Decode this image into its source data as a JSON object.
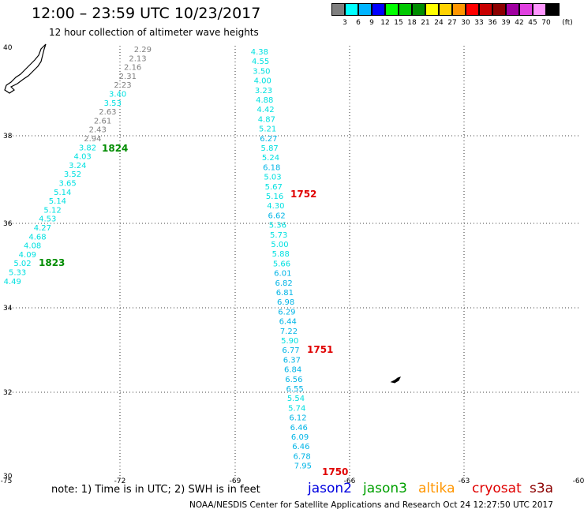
{
  "header": {
    "title": "12:00 – 23:59 UTC 10/23/2017",
    "subtitle": "12 hour collection of altimeter wave heights"
  },
  "scale": {
    "unit": "(ft)",
    "labels": [
      "3",
      "6",
      "9",
      "12",
      "15",
      "18",
      "21",
      "24",
      "27",
      "30",
      "33",
      "36",
      "39",
      "42",
      "45",
      "70"
    ],
    "colors": [
      "#7f7f7f",
      "#00ffff",
      "#00b4ff",
      "#0000ff",
      "#00ff00",
      "#00c800",
      "#008c00",
      "#ffff00",
      "#ffd200",
      "#ff9600",
      "#ff0000",
      "#c80000",
      "#8c0000",
      "#a000a0",
      "#e040e0",
      "#ff96ff",
      "#000000"
    ]
  },
  "axes": {
    "lon_labels": [
      "-75",
      "-72",
      "-69",
      "-66",
      "-63",
      "-60"
    ],
    "lat_labels": [
      "40",
      "38",
      "36",
      "34",
      "32",
      "30"
    ]
  },
  "tracks": [
    {
      "time_label": "1824",
      "label_color": "#008c00",
      "points": [
        {
          "v": "2.29",
          "c": "#7f7f7f"
        },
        {
          "v": "2.13",
          "c": "#7f7f7f"
        },
        {
          "v": "2.16",
          "c": "#7f7f7f"
        },
        {
          "v": "2.31",
          "c": "#7f7f7f"
        },
        {
          "v": "2.23",
          "c": "#7f7f7f"
        },
        {
          "v": "3.40",
          "c": "#00e0e0"
        },
        {
          "v": "3.53",
          "c": "#00e0e0"
        },
        {
          "v": "2.63",
          "c": "#7f7f7f"
        },
        {
          "v": "2.61",
          "c": "#7f7f7f"
        },
        {
          "v": "2.43",
          "c": "#7f7f7f"
        },
        {
          "v": "2.94",
          "c": "#7f7f7f"
        },
        {
          "v": "3.82",
          "c": "#00e0e0"
        },
        {
          "v": "4.03",
          "c": "#00e0e0"
        },
        {
          "v": "3.24",
          "c": "#00e0e0"
        },
        {
          "v": "3.52",
          "c": "#00e0e0"
        },
        {
          "v": "3.65",
          "c": "#00e0e0"
        },
        {
          "v": "5.14",
          "c": "#00e0e0"
        },
        {
          "v": "5.14",
          "c": "#00e0e0"
        },
        {
          "v": "5.12",
          "c": "#00e0e0"
        },
        {
          "v": "4.53",
          "c": "#00e0e0"
        },
        {
          "v": "4.27",
          "c": "#00e0e0"
        },
        {
          "v": "4.68",
          "c": "#00e0e0"
        },
        {
          "v": "4.08",
          "c": "#00e0e0"
        },
        {
          "v": "4.09",
          "c": "#00e0e0"
        },
        {
          "v": "5.02",
          "c": "#00e0e0"
        },
        {
          "v": "5.33",
          "c": "#00e0e0"
        },
        {
          "v": "4.49",
          "c": "#00e0e0"
        }
      ],
      "second_time_label": "1823"
    },
    {
      "time_label": "1752",
      "label_color": "#e00000",
      "points": [
        {
          "v": "4.38",
          "c": "#00e0e0"
        },
        {
          "v": "4.55",
          "c": "#00e0e0"
        },
        {
          "v": "3.50",
          "c": "#00e0e0"
        },
        {
          "v": "4.00",
          "c": "#00e0e0"
        },
        {
          "v": "3.23",
          "c": "#00e0e0"
        },
        {
          "v": "4.88",
          "c": "#00e0e0"
        },
        {
          "v": "4.42",
          "c": "#00e0e0"
        },
        {
          "v": "4.87",
          "c": "#00e0e0"
        },
        {
          "v": "5.21",
          "c": "#00e0e0"
        },
        {
          "v": "6.27",
          "c": "#00b4e6"
        },
        {
          "v": "5.87",
          "c": "#00e0e0"
        },
        {
          "v": "5.24",
          "c": "#00e0e0"
        },
        {
          "v": "6.18",
          "c": "#00b4e6"
        },
        {
          "v": "5.03",
          "c": "#00e0e0"
        },
        {
          "v": "5.67",
          "c": "#00e0e0"
        },
        {
          "v": "5.16",
          "c": "#00e0e0"
        },
        {
          "v": "4.30",
          "c": "#00e0e0"
        },
        {
          "v": "6.62",
          "c": "#00b4e6"
        },
        {
          "v": "5.36",
          "c": "#00e0e0"
        },
        {
          "v": "5.73",
          "c": "#00e0e0"
        },
        {
          "v": "5.00",
          "c": "#00e0e0"
        },
        {
          "v": "5.88",
          "c": "#00e0e0"
        },
        {
          "v": "5.66",
          "c": "#00e0e0"
        },
        {
          "v": "6.01",
          "c": "#00b4e6"
        },
        {
          "v": "6.82",
          "c": "#00b4e6"
        },
        {
          "v": "6.81",
          "c": "#00b4e6"
        },
        {
          "v": "6.98",
          "c": "#00b4e6"
        },
        {
          "v": "6.29",
          "c": "#00b4e6"
        },
        {
          "v": "6.44",
          "c": "#00b4e6"
        },
        {
          "v": "7.22",
          "c": "#00b4e6"
        },
        {
          "v": "5.90",
          "c": "#00e0e0"
        },
        {
          "v": "6.77",
          "c": "#00b4e6"
        },
        {
          "v": "6.37",
          "c": "#00b4e6"
        },
        {
          "v": "6.84",
          "c": "#00b4e6"
        },
        {
          "v": "6.56",
          "c": "#00b4e6"
        },
        {
          "v": "6.55",
          "c": "#00b4e6"
        },
        {
          "v": "5.54",
          "c": "#00e0e0"
        },
        {
          "v": "5.74",
          "c": "#00e0e0"
        },
        {
          "v": "6.12",
          "c": "#00b4e6"
        },
        {
          "v": "6.46",
          "c": "#00b4e6"
        },
        {
          "v": "6.09",
          "c": "#00b4e6"
        },
        {
          "v": "6.46",
          "c": "#00b4e6"
        },
        {
          "v": "6.78",
          "c": "#00b4e6"
        },
        {
          "v": "7.95",
          "c": "#00b4e6"
        }
      ],
      "mid_time_label": "1751",
      "end_time_label": "1750"
    }
  ],
  "footer": {
    "note": "note:  1) Time is in UTC;  2) SWH is in feet",
    "credit": "NOAA/NESDIS Center for Satellite Applications and Research     Oct 24 12:27:50 UTC 2017",
    "satellites": [
      {
        "name": "jason2",
        "color": "#0000e0"
      },
      {
        "name": "jason3",
        "color": "#00a000"
      },
      {
        "name": "altika",
        "color": "#ff9600"
      },
      {
        "name": "cryosat",
        "color": "#e00000"
      },
      {
        "name": "s3a",
        "color": "#8c0000"
      }
    ]
  }
}
